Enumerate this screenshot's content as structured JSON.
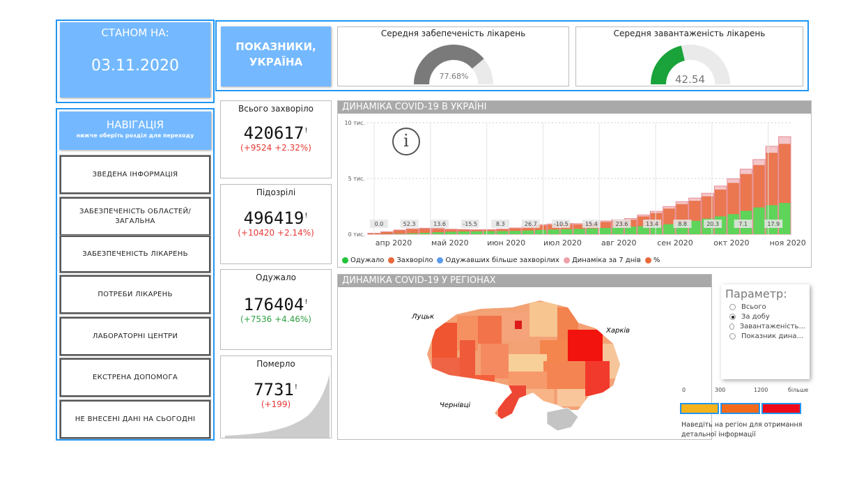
{
  "date_box": {
    "label": "СТАНОМ НА:",
    "date": "03.11.2020"
  },
  "indicators": {
    "title_line1": "ПОКАЗНИКИ,",
    "title_line2": "УКРАЇНА",
    "gauge1": {
      "title": "Середня забепеченість лікарень",
      "value_text": "77.68%",
      "fraction": 0.7768,
      "color": "#7a7a7a"
    },
    "gauge2": {
      "title": "Середня завантаженість лікарень",
      "value_text": "42.54",
      "fraction": 0.4254,
      "color": "#1aa33a"
    }
  },
  "nav": {
    "title": "НАВІГАЦІЯ",
    "subtitle": "нижче оберіть розділ для переходу",
    "items": [
      "ЗВЕДЕНА ІНФОРМАЦІЯ",
      "ЗАБЕЗПЕЧЕНІСТЬ ОБЛАСТЕЙ/ ЗАГАЛЬНА",
      "ЗАБЕЗПЕЧЕНІСТЬ ЛІКАРЕНЬ",
      "ПОТРЕБИ ЛІКАРЕНЬ",
      "ЛАБОРАТОРНІ ЦЕНТРИ",
      "ЕКСТРЕНА ДОПОМОГА",
      "НЕ ВНЕСЕНІ ДАНІ НА СЬОГОДНІ"
    ]
  },
  "stats": {
    "total": {
      "title": "Всього захворіло",
      "value": "420617",
      "mark": "!",
      "delta": "(+9524 +2.32%)",
      "color": "#e53935"
    },
    "suspected": {
      "title": "Підозрілі",
      "value": "496419",
      "mark": "!",
      "delta": "(+10420 +2.14%)",
      "color": "#e53935"
    },
    "recovered": {
      "title": "Одужало",
      "value": "176404",
      "mark": "!",
      "delta": "(+7536 +4.46%)",
      "color": "#2ea043"
    },
    "deaths": {
      "title": "Померло",
      "value": "7731",
      "mark": "!",
      "delta": "(+199)",
      "color": "#e53935"
    }
  },
  "dynamics": {
    "title": "ДИНАМІКА COVID-19 В УКРАЇНІ",
    "info_icon": "info-icon",
    "legend": [
      {
        "label": "Одужало",
        "color": "#22c33a"
      },
      {
        "label": "Захворіло",
        "color": "#e8693a"
      },
      {
        "label": "Одужавших більше захворілих",
        "color": "#5b9bf0"
      },
      {
        "label": "Динаміка за 7 днів",
        "color": "#f0a0a8"
      },
      {
        "label": "%",
        "color": "#e8693a"
      }
    ]
  },
  "chart_data": {
    "type": "bar",
    "title": "ДИНАМІКА COVID-19 В УКРАЇНІ",
    "y_ticks": [
      "10 тис.",
      "5 тис.",
      "0 тис."
    ],
    "ylim": [
      0,
      10000
    ],
    "months": [
      "апр 2020",
      "май 2020",
      "июн 2020",
      "июл 2020",
      "авг 2020",
      "сен 2020",
      "окт 2020",
      "ноя 2020"
    ],
    "weekly_pct_labels": [
      "0.0",
      "52.3",
      "13.6",
      "-15.5",
      "8.3",
      "26.7",
      "-10.5",
      "15.4",
      "23.6",
      "13.4",
      "8.8",
      "20.3",
      "7.1",
      "17.9"
    ],
    "weekly_sick": [
      80,
      200,
      350,
      450,
      500,
      480,
      420,
      400,
      380,
      390,
      430,
      520,
      650,
      800,
      850,
      900,
      880,
      950,
      1100,
      1200,
      1300,
      1600,
      1900,
      2300,
      2700,
      3000,
      3400,
      4000,
      4600,
      5400,
      6200,
      7300,
      8100
    ],
    "weekly_recovered": [
      5,
      15,
      40,
      80,
      120,
      180,
      220,
      250,
      260,
      270,
      280,
      300,
      330,
      380,
      420,
      450,
      480,
      520,
      560,
      620,
      680,
      720,
      800,
      900,
      1000,
      1200,
      1400,
      1600,
      1800,
      2100,
      2400,
      2600,
      2800
    ]
  },
  "regions": {
    "title": "ДИНАМІКА COVID-19 У РЕГІОНАХ",
    "city_labels": [
      "Луцьк",
      "Харків",
      "Чернівці"
    ],
    "parameter": {
      "title": "Параметр:",
      "options": [
        "Всього",
        "За добу",
        "Завантаженість...",
        "Показник дина..."
      ],
      "selected": 1
    },
    "scale": {
      "ticks": [
        "0",
        "300",
        "1200",
        "більше"
      ],
      "colors": [
        "#f5b31c",
        "#f26b1d",
        "#ee0a19"
      ]
    },
    "hint": "Наведіть на регіон для отримання детальної інформації"
  }
}
